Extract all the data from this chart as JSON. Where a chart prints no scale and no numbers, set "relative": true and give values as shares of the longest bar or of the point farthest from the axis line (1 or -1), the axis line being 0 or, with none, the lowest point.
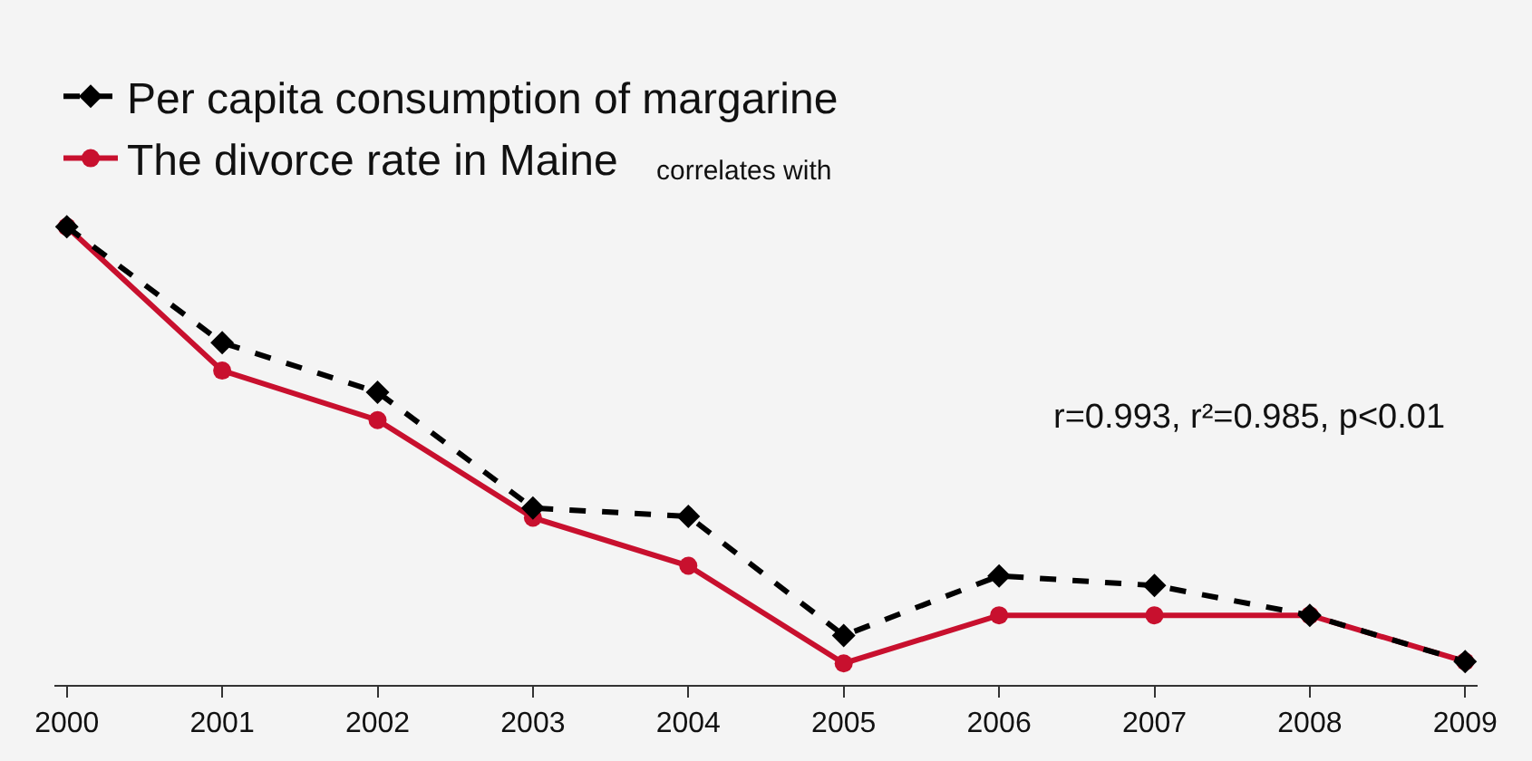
{
  "chart_data": {
    "type": "line",
    "relative": true,
    "categories": [
      "2000",
      "2001",
      "2002",
      "2003",
      "2004",
      "2005",
      "2006",
      "2007",
      "2008",
      "2009"
    ],
    "series": [
      {
        "name": "Per capita consumption of margarine",
        "color": "#000000",
        "marker": "diamond",
        "line_style": "dashed",
        "values": [
          1,
          0.747,
          0.639,
          0.386,
          0.368,
          0.108,
          0.238,
          0.217,
          0.152,
          0.051
        ]
      },
      {
        "name": "The divorce rate in Maine",
        "color": "#c8102e",
        "marker": "circle",
        "line_style": "solid",
        "values": [
          1,
          0.686,
          0.578,
          0.365,
          0.26,
          0.047,
          0.152,
          0.152,
          0.152,
          0.051
        ]
      }
    ],
    "annotations": [
      "correlates with",
      "r=0.993, r²=0.985, p<0.01"
    ],
    "legend": "top left",
    "grid": false
  }
}
